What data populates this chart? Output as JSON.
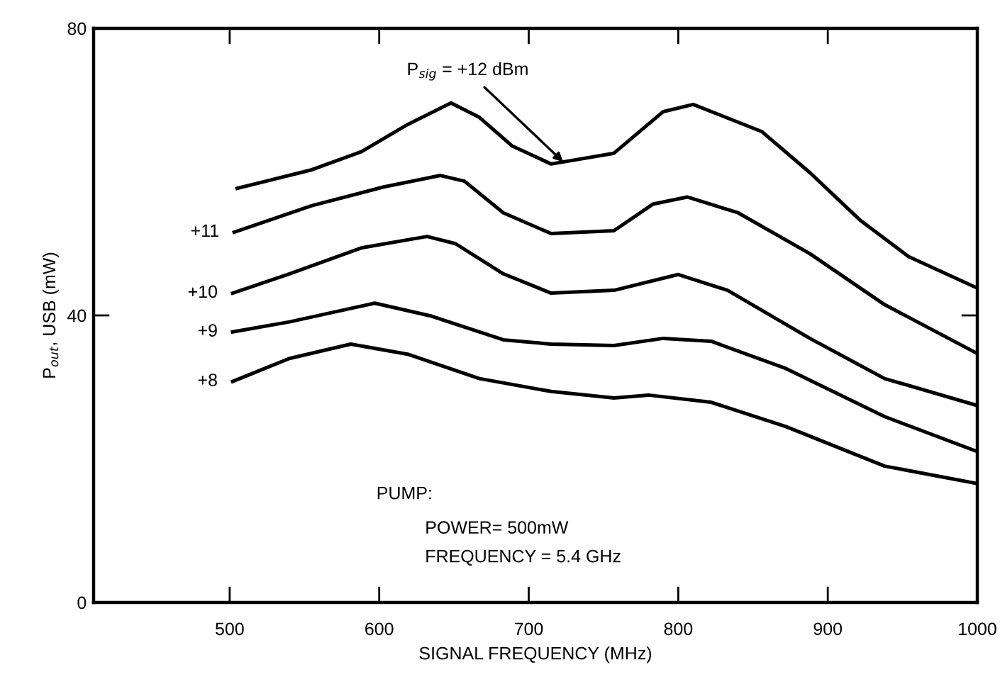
{
  "chart_data": {
    "type": "line",
    "xlabel": "SIGNAL FREQUENCY (MHz)",
    "ylabel": "P$_{out}$, USB (mW)",
    "xlim": [
      409,
      1000
    ],
    "ylim": [
      0,
      80
    ],
    "xticks": [
      500,
      600,
      700,
      800,
      900,
      1000
    ],
    "yticks": [
      0,
      40,
      80
    ],
    "grid": false,
    "legend": false,
    "marker": "none",
    "line_style": "solid",
    "series": [
      {
        "color": "#000000",
        "x": [
          505,
          555,
          588,
          619,
          648,
          667,
          689,
          715,
          757,
          790,
          810,
          856,
          888,
          922,
          954,
          999
        ],
        "values": [
          57.7,
          60.3,
          62.8,
          66.6,
          69.6,
          67.6,
          63.6,
          61.1,
          62.6,
          68.4,
          69.4,
          65.6,
          59.9,
          53.2,
          48.2,
          43.9
        ]
      },
      {
        "name": "+11",
        "color": "#000000",
        "x": [
          503,
          555,
          603,
          641,
          657,
          683,
          715,
          757,
          783,
          806,
          840,
          888,
          938,
          999
        ],
        "values": [
          51.6,
          55.3,
          57.9,
          59.5,
          58.7,
          54.3,
          51.4,
          51.8,
          55.5,
          56.5,
          54.3,
          48.6,
          41.5,
          34.8
        ]
      },
      {
        "name": "+10",
        "color": "#000000",
        "x": [
          502,
          540,
          588,
          632,
          651,
          683,
          715,
          757,
          800,
          833,
          888,
          938,
          999
        ],
        "values": [
          43.1,
          45.8,
          49.4,
          51.0,
          50.0,
          45.8,
          43.1,
          43.5,
          45.7,
          43.5,
          36.8,
          31.2,
          27.5
        ]
      },
      {
        "name": "+9",
        "color": "#000000",
        "x": [
          502,
          540,
          597,
          635,
          683,
          715,
          757,
          790,
          822,
          872,
          938,
          999
        ],
        "values": [
          37.7,
          39.1,
          41.7,
          39.9,
          36.6,
          36.0,
          35.8,
          36.8,
          36.4,
          32.6,
          25.9,
          21.1
        ]
      },
      {
        "name": "+8",
        "color": "#000000",
        "x": [
          502,
          540,
          581,
          619,
          667,
          715,
          757,
          780,
          822,
          872,
          938,
          999
        ],
        "values": [
          30.8,
          34.0,
          36.0,
          34.6,
          31.2,
          29.4,
          28.5,
          28.9,
          27.9,
          24.5,
          19.0,
          16.6
        ]
      }
    ],
    "annotations": [
      {
        "text": "P$_{sig}$ = +12 dBm",
        "x": 725,
        "y": 61
      },
      "PUMP:",
      "POWER= 500mW",
      "FREQUENCY = 5.4 GHz"
    ]
  }
}
